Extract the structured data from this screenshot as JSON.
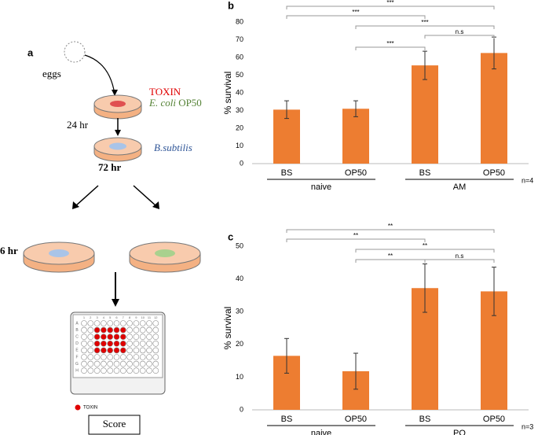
{
  "panel_a": {
    "label": "a",
    "eggs": "eggs",
    "toxin": "TOXIN",
    "ecoli_italic": "E. coli",
    "ecoli_rest": "OP50",
    "time1": "24 hr",
    "bsub": "B.subtilis",
    "time2": "72 hr",
    "time3": "6 hr",
    "plate_rows": [
      "A",
      "B",
      "C",
      "D",
      "E",
      "F",
      "G",
      "H"
    ],
    "plate_cols": [
      "1",
      "2",
      "3",
      "4",
      "5",
      "6",
      "7",
      "8",
      "9",
      "10",
      "11",
      "12"
    ],
    "plate_legend": "TOXIN",
    "score": "Score"
  },
  "chart_data": [
    {
      "type": "bar",
      "panel": "b",
      "ylabel": "% survival",
      "categories": [
        "BS",
        "OP50",
        "BS",
        "OP50"
      ],
      "groups": [
        "naive",
        "AM"
      ],
      "values": [
        30.5,
        31,
        55.5,
        62.5
      ],
      "errors": [
        5,
        4.5,
        8,
        9
      ],
      "color": "#ed7d31",
      "ylim": [
        0,
        80
      ],
      "yticks": [
        0,
        10,
        20,
        30,
        40,
        50,
        60,
        70,
        80
      ],
      "annotations": [
        "***",
        "***",
        "***",
        "n.s",
        "***"
      ],
      "note": "n=4"
    },
    {
      "type": "bar",
      "panel": "c",
      "ylabel": "% survival",
      "categories": [
        "BS",
        "OP50",
        "BS",
        "OP50"
      ],
      "groups": [
        "naive",
        "PQ"
      ],
      "values": [
        16.5,
        11.8,
        37.2,
        36.2
      ],
      "errors": [
        5.3,
        5.5,
        7.4,
        7.4
      ],
      "color": "#ed7d31",
      "ylim": [
        0,
        50
      ],
      "yticks": [
        0,
        10,
        20,
        30,
        40,
        50
      ],
      "annotations": [
        "**",
        "**",
        "**",
        "**",
        "n.s"
      ],
      "note": "n=3"
    }
  ]
}
